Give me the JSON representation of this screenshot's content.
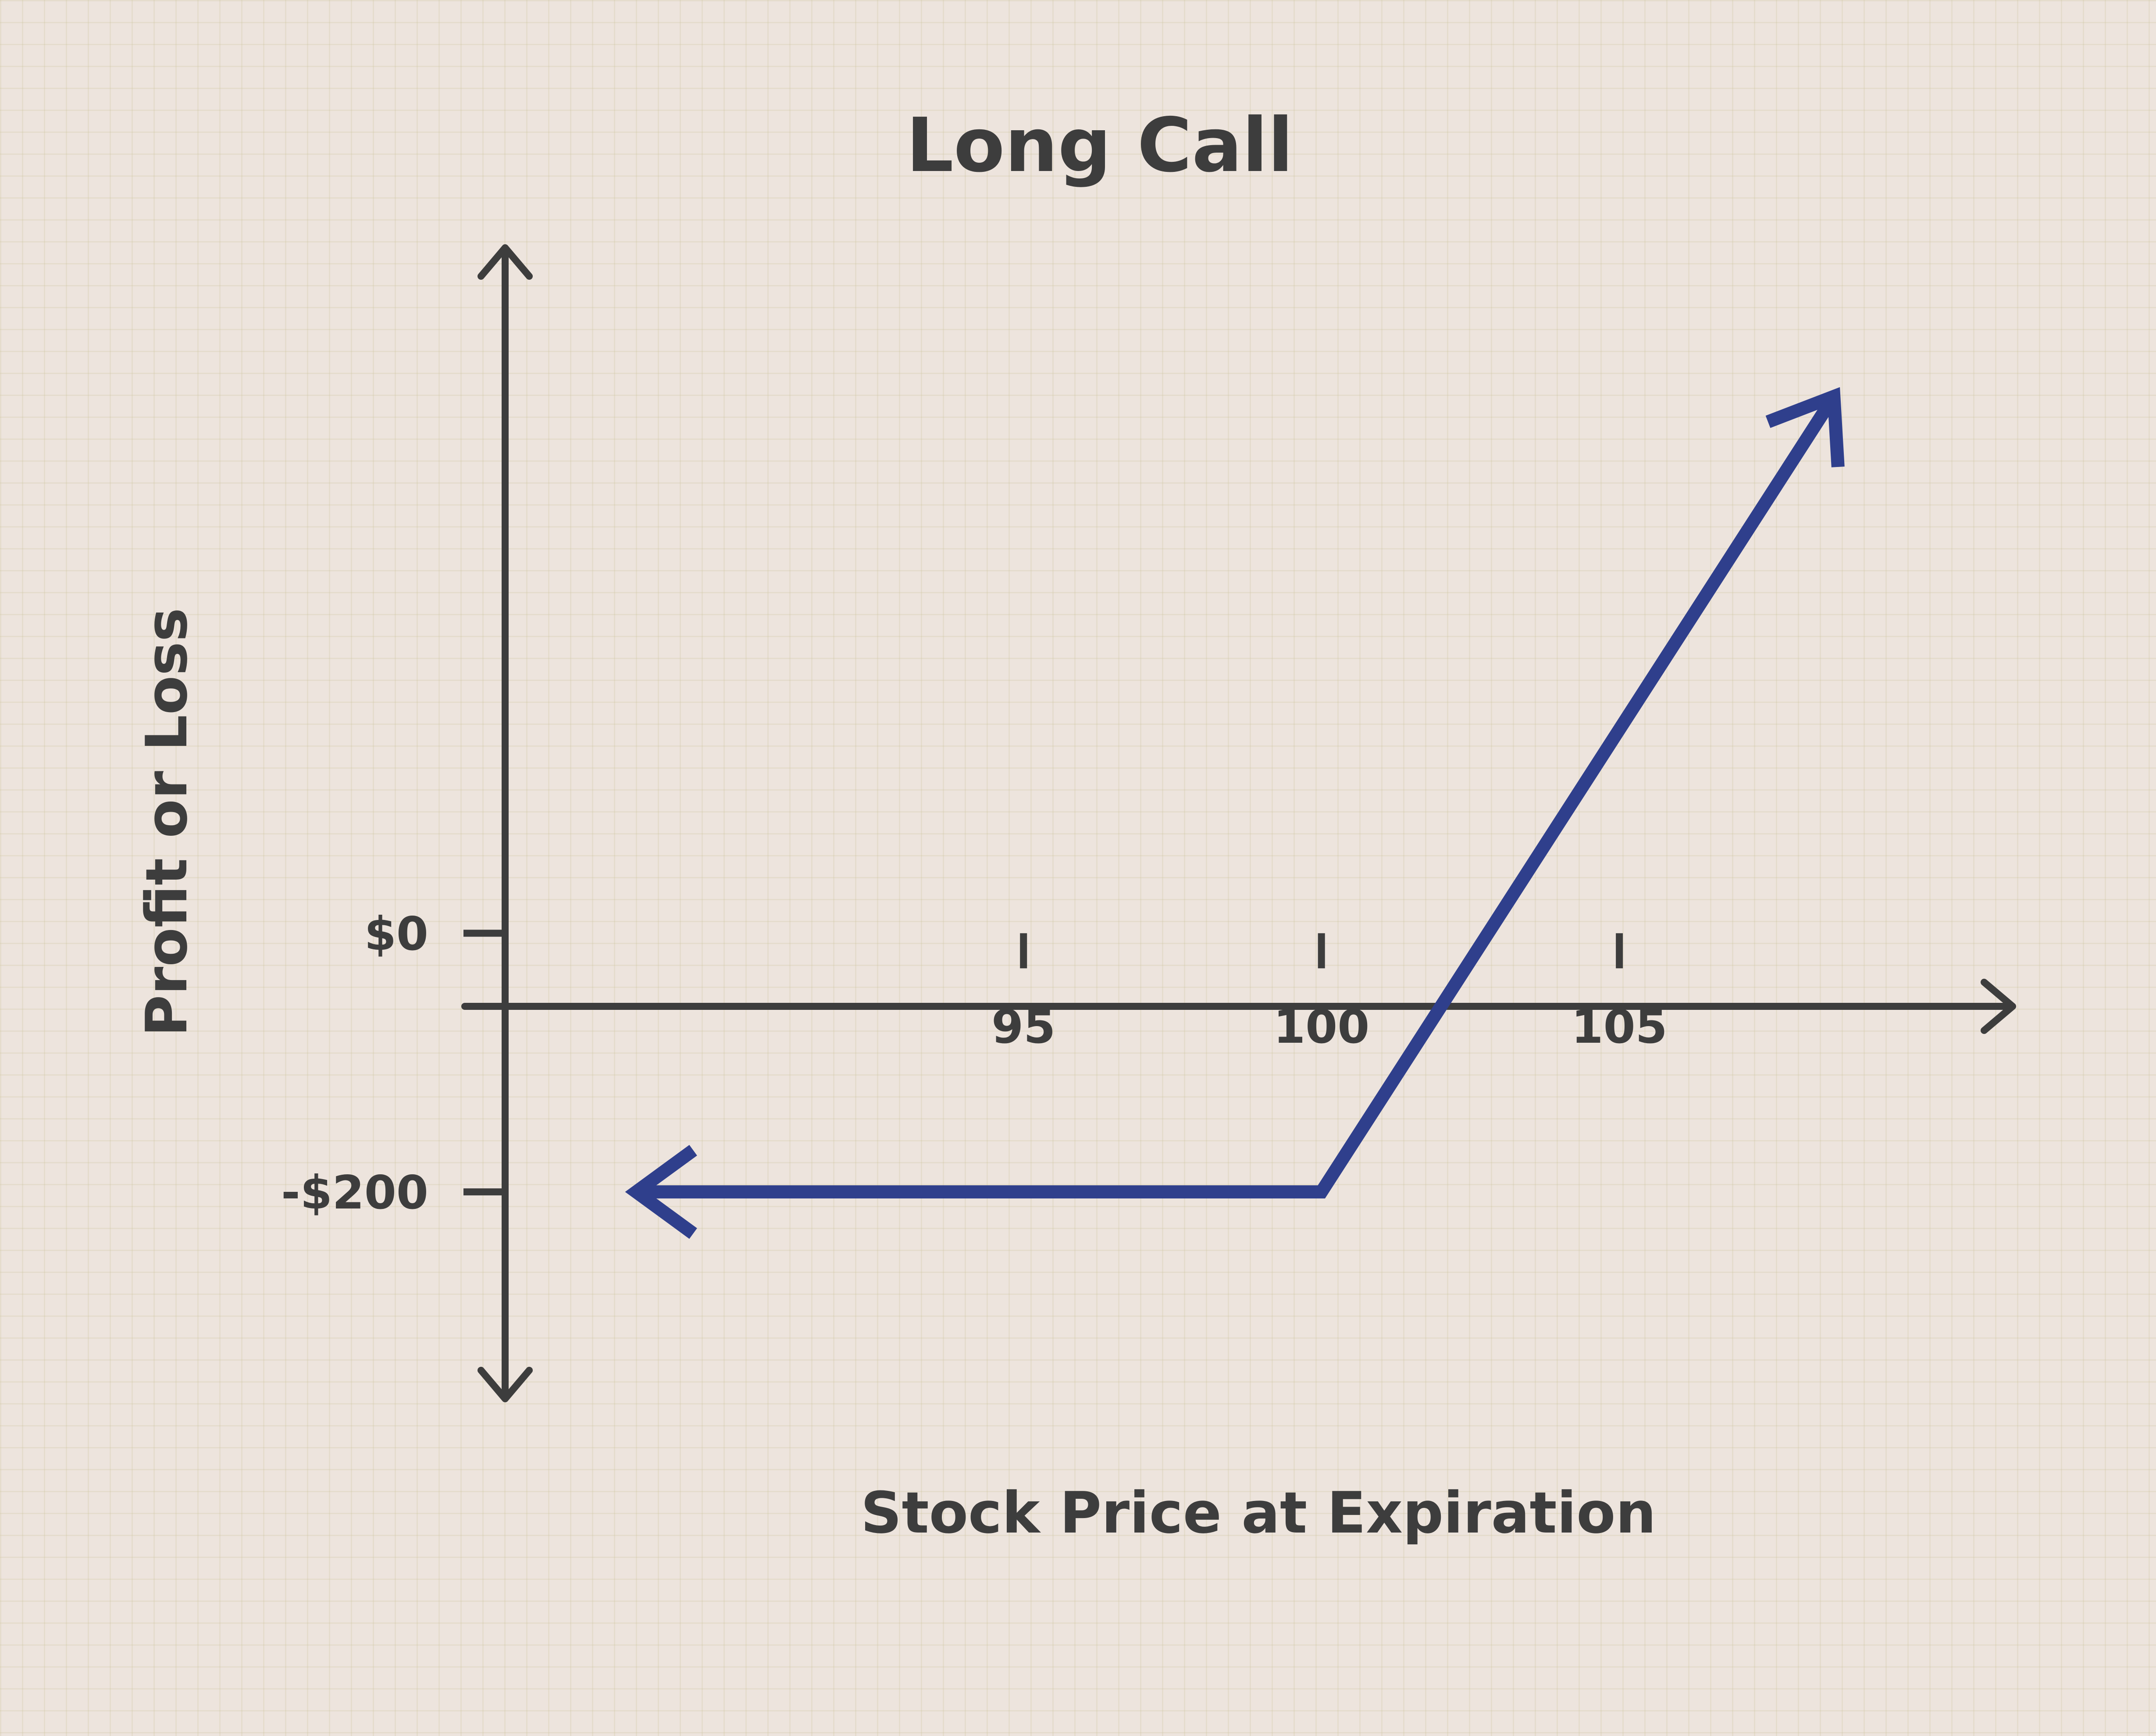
{
  "chart_data": {
    "type": "line",
    "title": "Long Call",
    "xlabel": "Stock Price at Expiration",
    "ylabel": "Profit or Loss",
    "x_ticks": [
      {
        "value": 95,
        "label": "95"
      },
      {
        "value": 100,
        "label": "100"
      },
      {
        "value": 105,
        "label": "105"
      }
    ],
    "y_ticks": [
      {
        "value": 0,
        "label": "$0"
      },
      {
        "value": -200,
        "label": "-$200"
      }
    ],
    "xlim": [
      86.3,
      111.6
    ],
    "ylim": [
      -360,
      530
    ],
    "series": [
      {
        "color": "#2f3f8c",
        "points": [
          {
            "x": 88.5,
            "y": -200
          },
          {
            "x": 100,
            "y": -200
          },
          {
            "x": 108.6,
            "y": 415
          }
        ]
      }
    ],
    "grid": true,
    "legend": "none",
    "colors": {
      "axis": "#3d3d3d",
      "line": "#2f3f8c",
      "background": "#ede4dd"
    }
  }
}
